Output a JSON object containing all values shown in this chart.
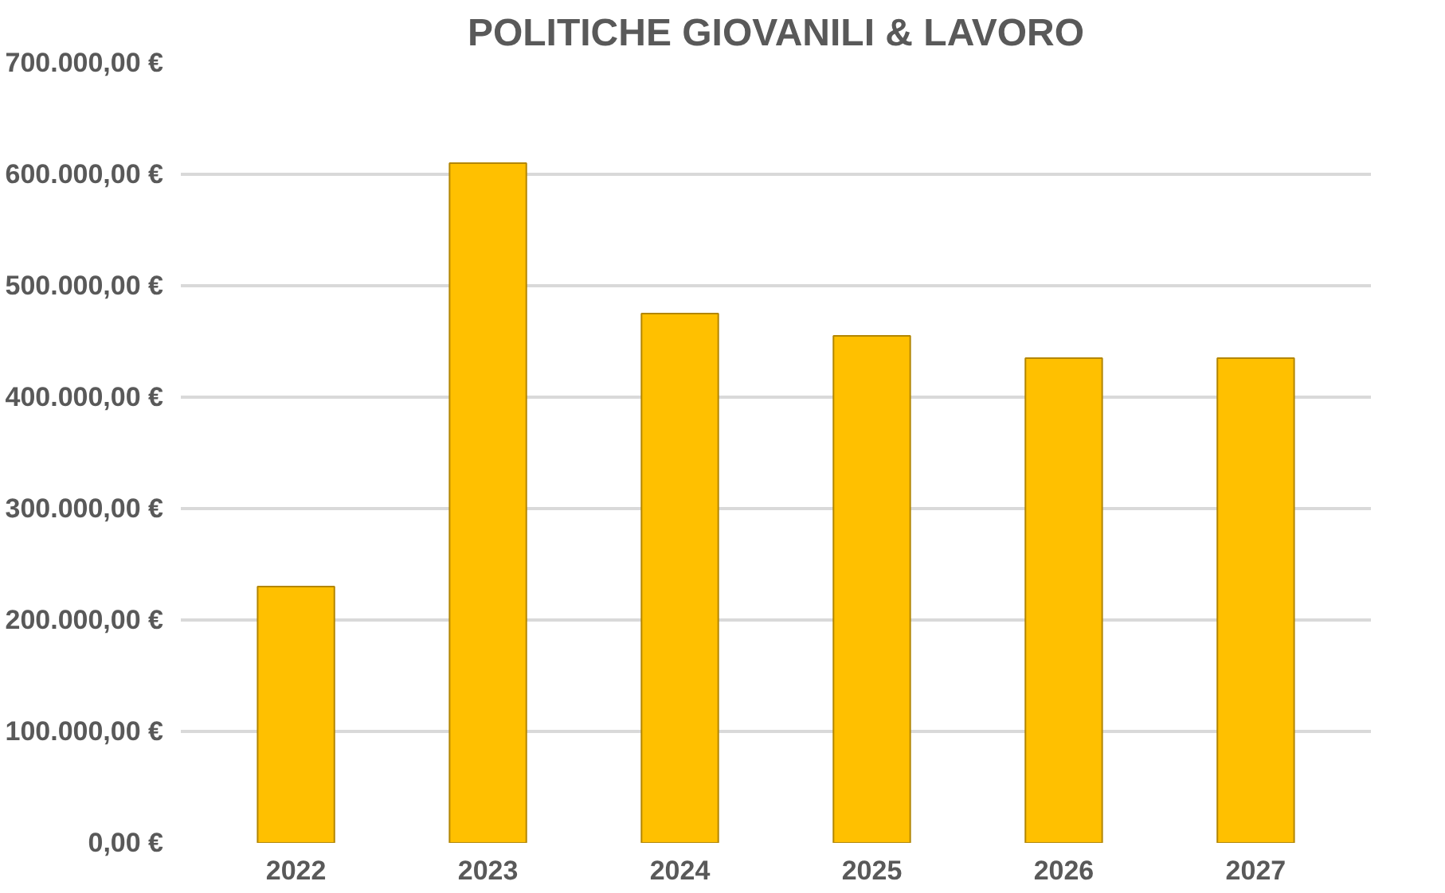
{
  "chart_data": {
    "type": "bar",
    "title": "POLITICHE GIOVANILI & LAVORO",
    "categories": [
      "2022",
      "2023",
      "2024",
      "2025",
      "2026",
      "2027"
    ],
    "values": [
      230000,
      610000,
      475000,
      455000,
      435000,
      435000
    ],
    "color": "#ffc000",
    "ylim": [
      0,
      700000
    ],
    "yticks": [
      {
        "value": 0,
        "label": "0,00 €"
      },
      {
        "value": 100000,
        "label": "100.000,00 €"
      },
      {
        "value": 200000,
        "label": "200.000,00 €"
      },
      {
        "value": 300000,
        "label": "300.000,00 €"
      },
      {
        "value": 400000,
        "label": "400.000,00 €"
      },
      {
        "value": 500000,
        "label": "500.000,00 €"
      },
      {
        "value": 600000,
        "label": "600.000,00 €"
      },
      {
        "value": 700000,
        "label": "700.000,00 €"
      }
    ],
    "grid": "y"
  }
}
